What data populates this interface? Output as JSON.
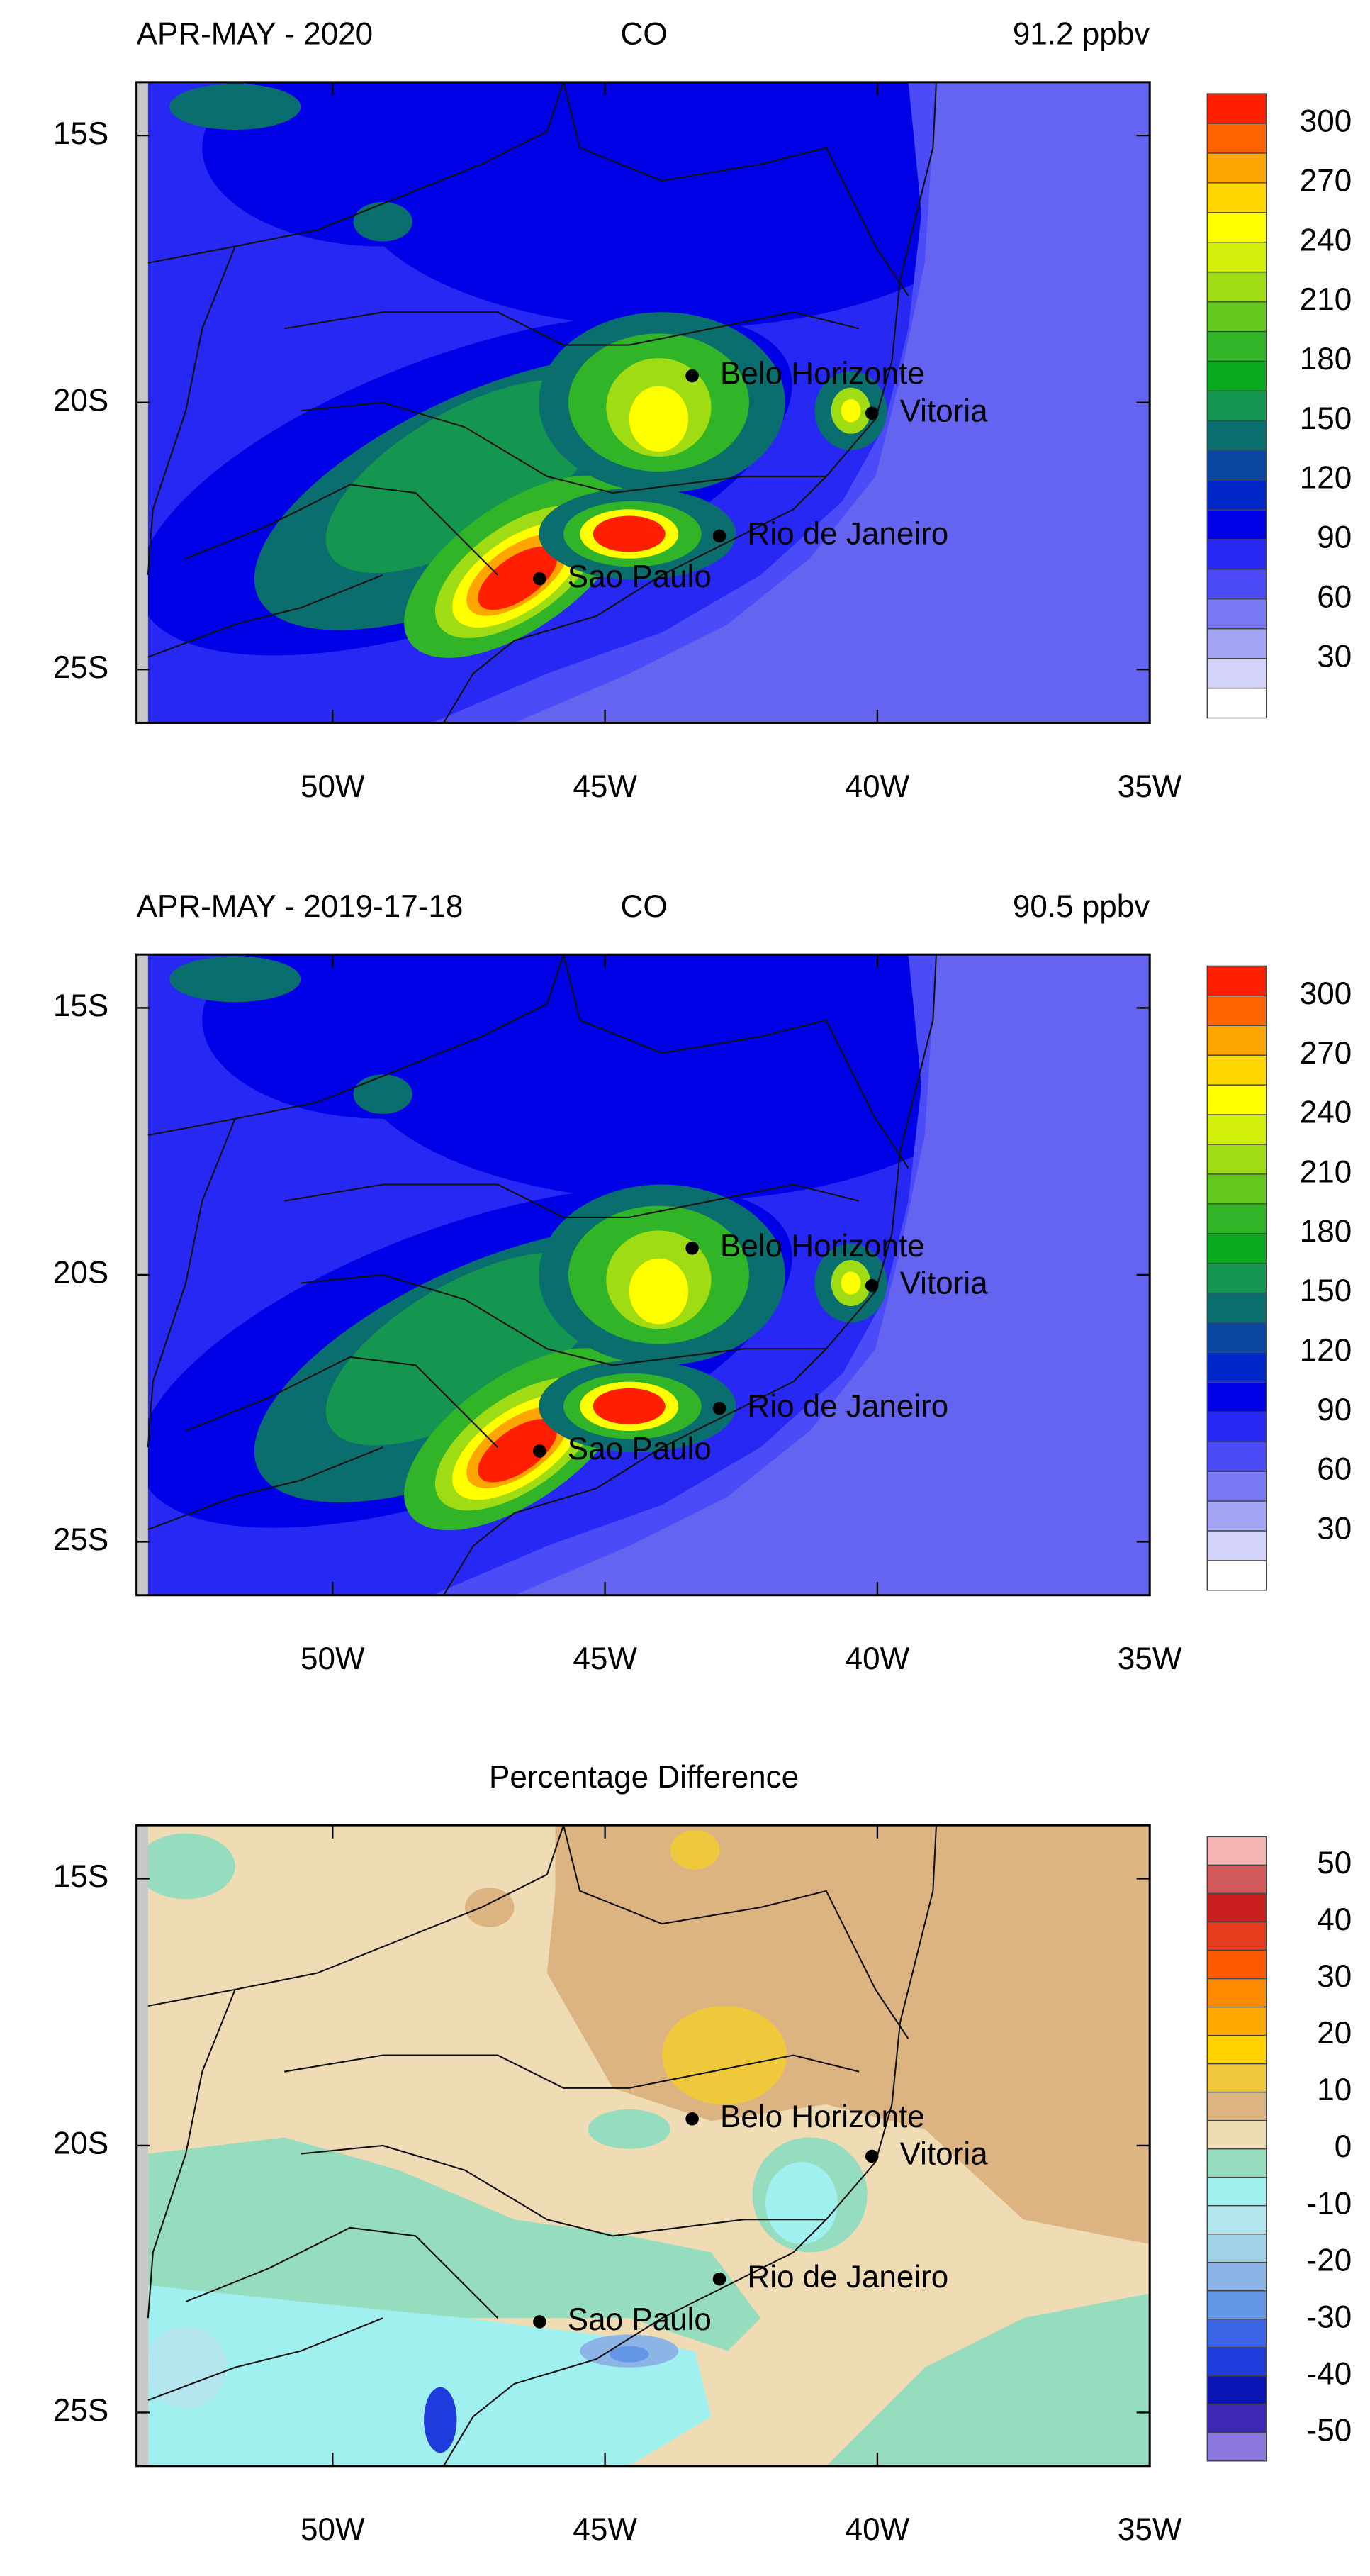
{
  "map": {
    "xlim": [
      -53.6,
      -35
    ],
    "ylim": [
      -26,
      -14
    ],
    "xticks": [
      {
        "value": -50,
        "label": "50W"
      },
      {
        "value": -45,
        "label": "45W"
      },
      {
        "value": -40,
        "label": "40W"
      },
      {
        "value": -35,
        "label": "35W"
      }
    ],
    "yticks": [
      {
        "value": -15,
        "label": "15S"
      },
      {
        "value": -20,
        "label": "20S"
      },
      {
        "value": -25,
        "label": "25S"
      }
    ],
    "cities": [
      {
        "name": "Belo Horizonte",
        "lon": -43.4,
        "lat": -19.5
      },
      {
        "name": "Vitoria",
        "lon": -40.1,
        "lat": -20.2
      },
      {
        "name": "Rio de Janeiro",
        "lon": -42.9,
        "lat": -22.5
      },
      {
        "name": "Sao Paulo",
        "lon": -46.2,
        "lat": -23.3
      }
    ]
  },
  "panels": [
    {
      "title": {
        "left": "APR-MAY - 2020",
        "center": "CO",
        "right": "91.2 ppbv"
      },
      "colorbar": {
        "levels": [
          15,
          30,
          45,
          60,
          75,
          90,
          105,
          120,
          135,
          150,
          165,
          180,
          195,
          210,
          225,
          240,
          255,
          270,
          285,
          300
        ],
        "colors": [
          "#ffffff",
          "#d2d2fa",
          "#a5a5f5",
          "#7878f5",
          "#4b4bf8",
          "#2828f5",
          "#0000e6",
          "#0028c8",
          "#0a46a0",
          "#0a6e6e",
          "#149650",
          "#0aaa1e",
          "#32b428",
          "#64c81e",
          "#a0dc14",
          "#d2f00a",
          "#ffff00",
          "#ffd700",
          "#ffa500",
          "#ff6400",
          "#ff1e00"
        ],
        "ticks": [
          30,
          60,
          90,
          120,
          150,
          180,
          210,
          240,
          270,
          300
        ]
      }
    },
    {
      "title": {
        "left": "APR-MAY - 2019-17-18",
        "center": "CO",
        "right": "90.5 ppbv"
      },
      "colorbar": {
        "levels": [
          15,
          30,
          45,
          60,
          75,
          90,
          105,
          120,
          135,
          150,
          165,
          180,
          195,
          210,
          225,
          240,
          255,
          270,
          285,
          300
        ],
        "colors": [
          "#ffffff",
          "#d2d2fa",
          "#a5a5f5",
          "#7878f5",
          "#4b4bf8",
          "#2828f5",
          "#0000e6",
          "#0028c8",
          "#0a46a0",
          "#0a6e6e",
          "#149650",
          "#0aaa1e",
          "#32b428",
          "#64c81e",
          "#a0dc14",
          "#d2f00a",
          "#ffff00",
          "#ffd700",
          "#ffa500",
          "#ff6400",
          "#ff1e00"
        ],
        "ticks": [
          30,
          60,
          90,
          120,
          150,
          180,
          210,
          240,
          270,
          300
        ]
      }
    },
    {
      "title": {
        "center": "Percentage Difference"
      },
      "colorbar": {
        "levels": [
          -50,
          -45,
          -40,
          -35,
          -30,
          -25,
          -20,
          -15,
          -10,
          -5,
          0,
          5,
          10,
          15,
          20,
          25,
          30,
          35,
          40,
          45,
          50
        ],
        "colors": [
          "#8c78dc",
          "#3c28b4",
          "#0a14b4",
          "#1e3cdc",
          "#3c64e6",
          "#6496e6",
          "#8cb4e6",
          "#a0d2e6",
          "#b4e6f0",
          "#a0f0f0",
          "#96dcbe",
          "#f0dcb4",
          "#dcb482",
          "#f0c83c",
          "#ffd200",
          "#ffaa00",
          "#ff8c00",
          "#ff5a00",
          "#e63c1e",
          "#c81e1e",
          "#d25a5a",
          "#f5b4b4"
        ],
        "ticks": [
          -50,
          -40,
          -30,
          -20,
          -10,
          0,
          10,
          20,
          30,
          40,
          50
        ]
      }
    }
  ]
}
